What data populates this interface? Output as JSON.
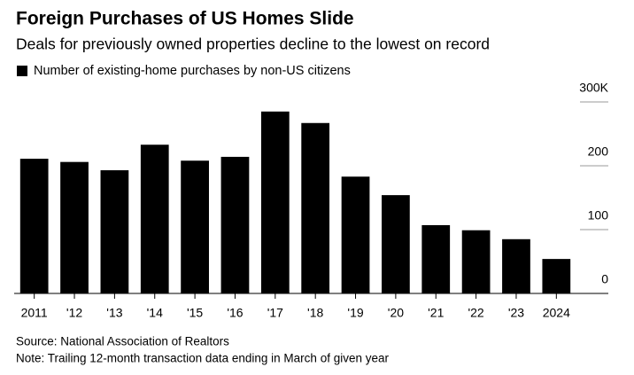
{
  "chart_data": {
    "type": "bar",
    "title": "Foreign Purchases of US Homes Slide",
    "subtitle": "Deals for previously owned properties decline to the lowest on record",
    "legend": "Number of existing-home purchases by non-US citizens",
    "source": "Source: National Association of Realtors",
    "note": "Note: Trailing 12-month transaction data ending in March of given year",
    "categories": [
      "2011",
      "'12",
      "'13",
      "'14",
      "'15",
      "'16",
      "'17",
      "'18",
      "'19",
      "'20",
      "'21",
      "'22",
      "'23",
      "2024"
    ],
    "values": [
      211,
      206,
      193,
      233,
      208,
      214,
      285,
      267,
      183,
      154,
      107,
      99,
      85,
      54
    ],
    "color": "#000000",
    "ylim": [
      0,
      300
    ],
    "yticks": [
      0,
      100,
      200,
      {
        "value": 300,
        "label": "300K"
      }
    ]
  }
}
